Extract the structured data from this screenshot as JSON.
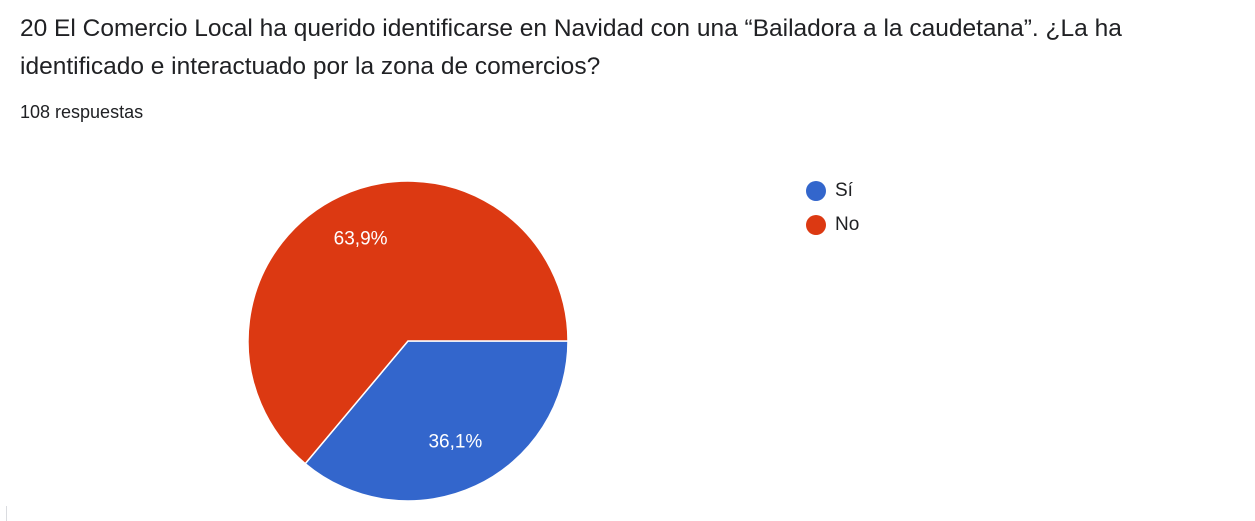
{
  "question": {
    "title": "20 El Comercio Local ha querido identificarse en Navidad con una “Bailadora a la caudetana”. ¿La ha identificado e interactuado por la zona de comercios?",
    "response_count": "108 respuestas"
  },
  "chart_data": {
    "type": "pie",
    "title": "",
    "categories": [
      "Sí",
      "No"
    ],
    "values": [
      36.1,
      63.9
    ],
    "data_labels": [
      "36,1%",
      "63,9%"
    ],
    "colors": [
      "#3366cc",
      "#dc3912"
    ],
    "legend_position": "right",
    "start_angle_deg": 90,
    "direction": "clockwise"
  }
}
